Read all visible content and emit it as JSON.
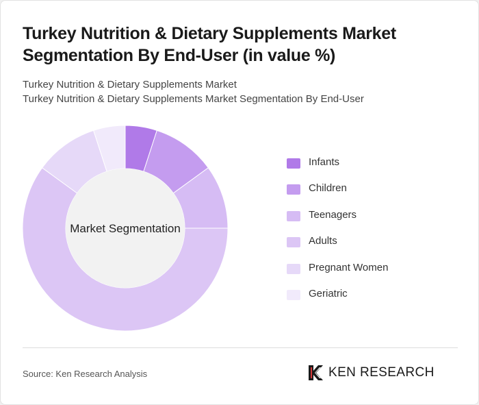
{
  "header": {
    "title": "Turkey Nutrition & Dietary Supplements Market Segmentation By End-User (in value %)",
    "subtitle_1": "Turkey Nutrition & Dietary Supplements Market",
    "subtitle_2": "Turkey Nutrition & Dietary Supplements Market Segmentation By End-User"
  },
  "chart_data": {
    "type": "pie",
    "variant": "donut",
    "center_label": "Market Segmentation",
    "categories": [
      "Infants",
      "Children",
      "Teenagers",
      "Adults",
      "Pregnant Women",
      "Geriatric"
    ],
    "values": [
      5,
      10,
      10,
      60,
      10,
      5
    ],
    "unit": "%",
    "colors": [
      "#b07ae8",
      "#c49cef",
      "#d6bcf4",
      "#dcc6f5",
      "#e6d9f8",
      "#f1eafb"
    ],
    "hole_color": "#f2f2f2",
    "legend_position": "right"
  },
  "footer": {
    "source": "Source: Ken Research Analysis",
    "logo_text": "KEN RESEARCH"
  }
}
